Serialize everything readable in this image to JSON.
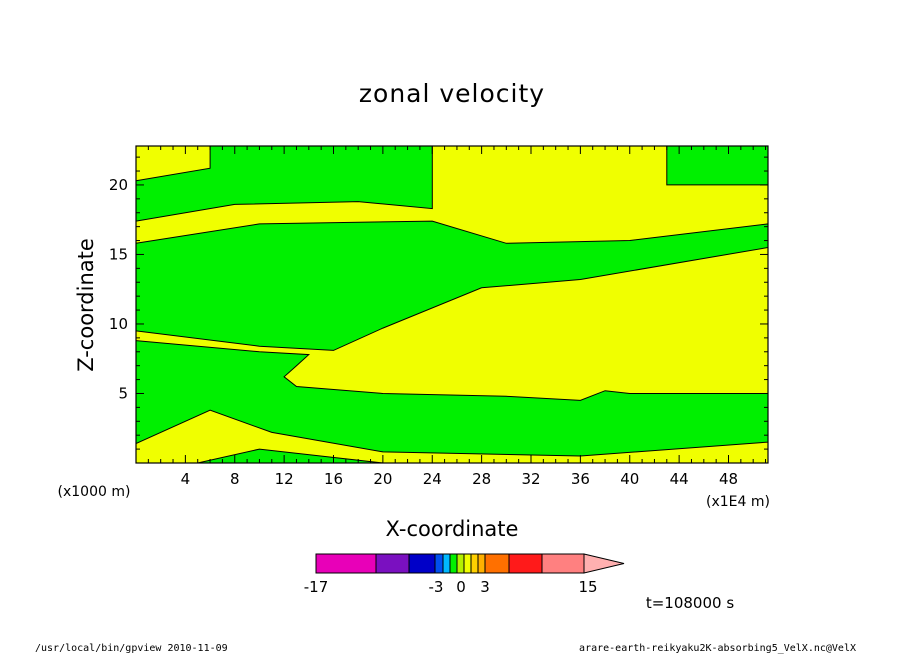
{
  "chart_data": {
    "type": "heatmap",
    "title": "zonal velocity",
    "xlabel": "X-coordinate",
    "ylabel": "Z-coordinate",
    "x_unit": "(x1E4 m)",
    "z_unit": "(x1000 m)",
    "xlim": [
      0,
      51.2
    ],
    "ylim": [
      0,
      22.8
    ],
    "x_ticks": [
      "4",
      "8",
      "12",
      "16",
      "20",
      "24",
      "28",
      "32",
      "36",
      "40",
      "44",
      "48"
    ],
    "y_ticks": [
      "5",
      "10",
      "15",
      "20"
    ],
    "colors": {
      "positive_small": "#f0ff00",
      "negative_small": "#00f000"
    },
    "regions": [
      {
        "kind": "green",
        "points": [
          [
            0,
            0
          ],
          [
            5,
            0
          ],
          [
            10,
            1
          ],
          [
            20,
            0
          ],
          [
            0,
            0
          ]
        ]
      },
      {
        "kind": "green",
        "points": [
          [
            0,
            1.4
          ],
          [
            6,
            3.8
          ],
          [
            11,
            2.2
          ],
          [
            20,
            0.8
          ],
          [
            36,
            0.5
          ],
          [
            51.2,
            1.5
          ],
          [
            51.2,
            5
          ],
          [
            40,
            5
          ],
          [
            38,
            5.2
          ],
          [
            36,
            4.5
          ],
          [
            30,
            4.8
          ],
          [
            20,
            5
          ],
          [
            13,
            5.5
          ],
          [
            12,
            6.2
          ],
          [
            13,
            7
          ],
          [
            14,
            7.8
          ],
          [
            10,
            8
          ],
          [
            0,
            8.8
          ]
        ]
      },
      {
        "kind": "green",
        "points": [
          [
            0,
            9.5
          ],
          [
            10,
            8.4
          ],
          [
            16,
            8.1
          ],
          [
            20,
            9.7
          ],
          [
            28,
            12.6
          ],
          [
            36,
            13.2
          ],
          [
            51.2,
            15.5
          ],
          [
            51.2,
            17.2
          ],
          [
            40,
            16
          ],
          [
            30,
            15.8
          ],
          [
            24,
            17.4
          ],
          [
            10,
            17.2
          ],
          [
            0,
            15.8
          ]
        ]
      },
      {
        "kind": "green",
        "points": [
          [
            0,
            17.4
          ],
          [
            8,
            18.6
          ],
          [
            18,
            18.8
          ],
          [
            24,
            18.3
          ],
          [
            24,
            22.8
          ],
          [
            6,
            22.8
          ],
          [
            6,
            21.2
          ],
          [
            0,
            20.3
          ]
        ]
      },
      {
        "kind": "green",
        "points": [
          [
            43,
            22.8
          ],
          [
            43,
            20
          ],
          [
            51.2,
            20
          ],
          [
            51.2,
            22.8
          ]
        ]
      }
    ],
    "colorbar": {
      "labels": [
        "-17",
        "-3",
        "0",
        "3",
        "15"
      ],
      "colors": [
        "#e800b8",
        "#7a10c0",
        "#0000c8",
        "#0050f0",
        "#00b8ff",
        "#00f000",
        "#b4f000",
        "#f0ff00",
        "#ffd000",
        "#ffb000",
        "#ff7000",
        "#ff1a1a",
        "#ff8080"
      ],
      "extend_color": "#ffb0b0"
    },
    "time_label": "t=108000 s"
  },
  "footer": {
    "left": "/usr/local/bin/gpview  2010-11-09",
    "right": "arare-earth-reikyaku2K-absorbing5_VelX.nc@VelX"
  }
}
